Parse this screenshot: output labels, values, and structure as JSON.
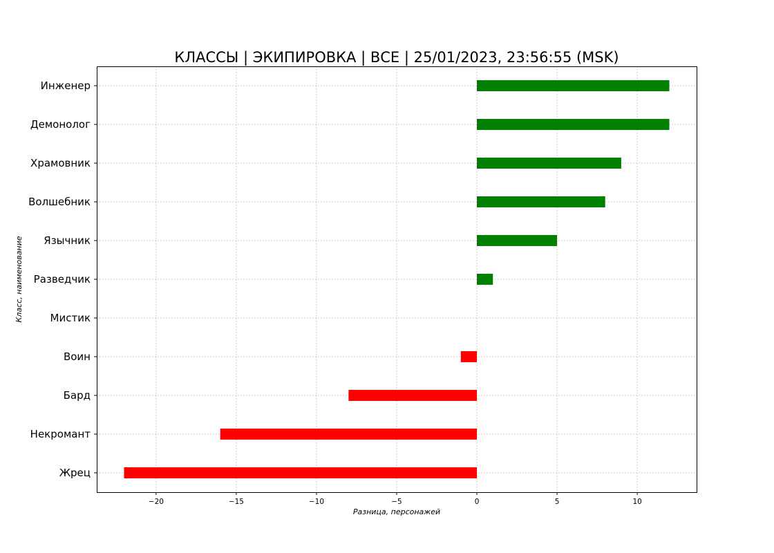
{
  "chart_data": {
    "type": "bar",
    "orientation": "horizontal",
    "title": "КЛАССЫ | ЭКИПИРОВКА | ВСЕ | 25/01/2023, 23:56:55 (MSK)",
    "xlabel": "Разница, персонажей",
    "ylabel": "Класс, наименование",
    "categories": [
      "Инженер",
      "Демонолог",
      "Храмовник",
      "Волшебник",
      "Язычник",
      "Разведчик",
      "Мистик",
      "Воин",
      "Бард",
      "Некромант",
      "Жрец"
    ],
    "values": [
      12,
      12,
      9,
      8,
      5,
      1,
      0,
      -1,
      -8,
      -16,
      -22
    ],
    "xlim": [
      -23.7,
      13.7
    ],
    "xticks": [
      -20,
      -15,
      -10,
      -5,
      0,
      5,
      10
    ],
    "xtick_labels": [
      "−20",
      "−15",
      "−10",
      "−5",
      "0",
      "5",
      "10"
    ],
    "grid": true,
    "colors": {
      "positive": "#008000",
      "negative": "#ff0000"
    }
  }
}
